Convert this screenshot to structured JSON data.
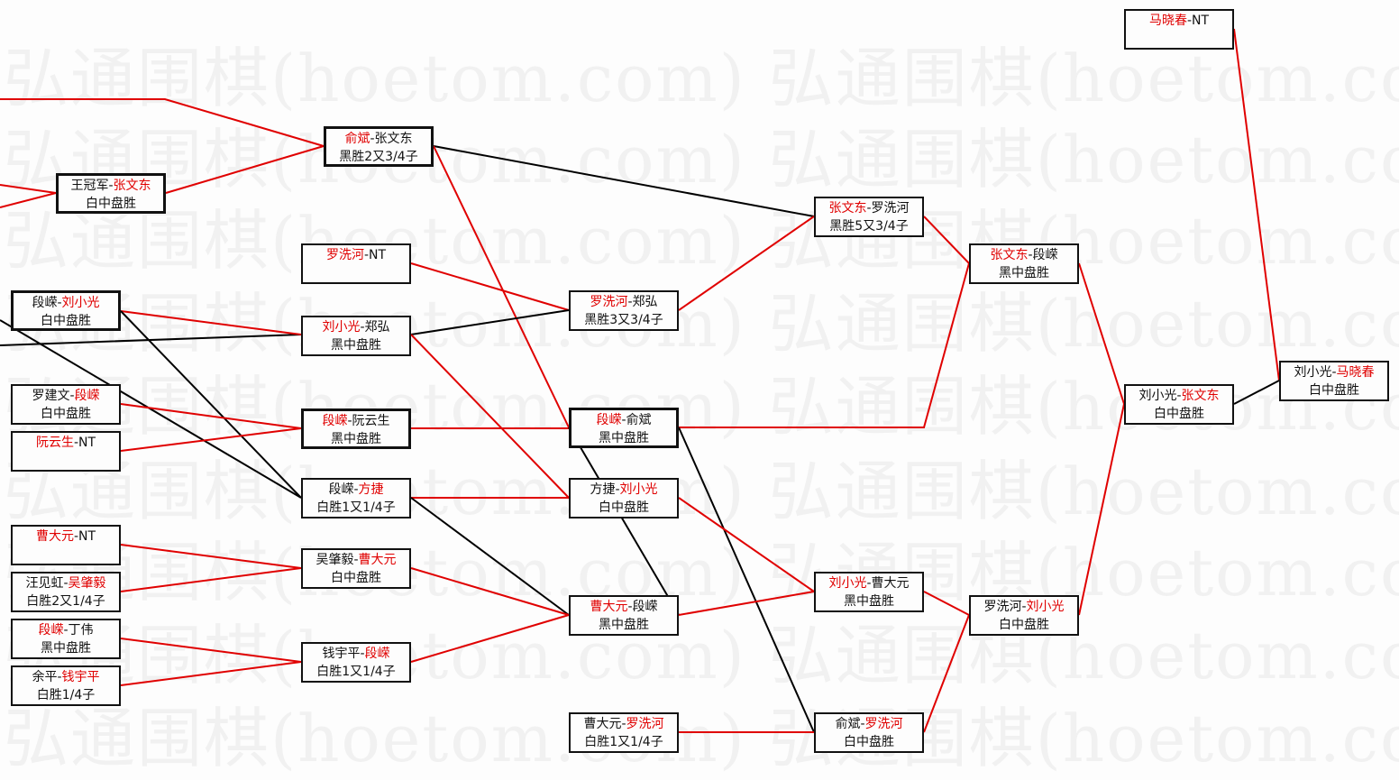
{
  "watermark": "弘通围棋(hoetom.com) 弘通围棋(hoetom.com) 弘通围棋",
  "colors": {
    "winner": "#e00000",
    "text": "#111111",
    "loser_line": "#000000",
    "winner_line": "#e00000"
  },
  "separator": "-",
  "matches": [
    {
      "p1": "王冠军",
      "p2": "张文东",
      "winner": 2,
      "result": "白中盘胜"
    },
    {
      "p1": "俞斌",
      "p2": "张文东",
      "winner": 1,
      "result": "黑胜2又3/4子"
    },
    {
      "p1": "罗洗河",
      "p2": "NT",
      "winner": 1,
      "result": ""
    },
    {
      "p1": "段嵘",
      "p2": "刘小光",
      "winner": 2,
      "result": "白中盘胜"
    },
    {
      "p1": "刘小光",
      "p2": "郑弘",
      "winner": 1,
      "result": "黑中盘胜"
    },
    {
      "p1": "罗建文",
      "p2": "段嵘",
      "winner": 2,
      "result": "白中盘胜"
    },
    {
      "p1": "阮云生",
      "p2": "NT",
      "winner": 1,
      "result": ""
    },
    {
      "p1": "段嵘",
      "p2": "阮云生",
      "winner": 1,
      "result": "黑中盘胜"
    },
    {
      "p1": "段嵘",
      "p2": "方捷",
      "winner": 2,
      "result": "白胜1又1/4子"
    },
    {
      "p1": "曹大元",
      "p2": "NT",
      "winner": 1,
      "result": ""
    },
    {
      "p1": "汪见虹",
      "p2": "吴肇毅",
      "winner": 2,
      "result": "白胜2又1/4子"
    },
    {
      "p1": "段嵘",
      "p2": "丁伟",
      "winner": 1,
      "result": "黑中盘胜"
    },
    {
      "p1": "余平",
      "p2": "钱宇平",
      "winner": 2,
      "result": "白胜1/4子"
    },
    {
      "p1": "吴肇毅",
      "p2": "曹大元",
      "winner": 2,
      "result": "白中盘胜"
    },
    {
      "p1": "钱宇平",
      "p2": "段嵘",
      "winner": 2,
      "result": "白胜1又1/4子"
    },
    {
      "p1": "罗洗河",
      "p2": "郑弘",
      "winner": 1,
      "result": "黑胜3又3/4子"
    },
    {
      "p1": "段嵘",
      "p2": "俞斌",
      "winner": 1,
      "result": "黑中盘胜"
    },
    {
      "p1": "方捷",
      "p2": "刘小光",
      "winner": 2,
      "result": "白中盘胜"
    },
    {
      "p1": "曹大元",
      "p2": "段嵘",
      "winner": 1,
      "result": "黑中盘胜"
    },
    {
      "p1": "曹大元",
      "p2": "罗洗河",
      "winner": 2,
      "result": "白胜1又1/4子"
    },
    {
      "p1": "张文东",
      "p2": "罗洗河",
      "winner": 1,
      "result": "黑胜5又3/4子"
    },
    {
      "p1": "刘小光",
      "p2": "曹大元",
      "winner": 1,
      "result": "黑中盘胜"
    },
    {
      "p1": "俞斌",
      "p2": "罗洗河",
      "winner": 2,
      "result": "白中盘胜"
    },
    {
      "p1": "张文东",
      "p2": "段嵘",
      "winner": 1,
      "result": "黑中盘胜"
    },
    {
      "p1": "罗洗河",
      "p2": "刘小光",
      "winner": 2,
      "result": "白中盘胜"
    },
    {
      "p1": "刘小光",
      "p2": "张文东",
      "winner": 2,
      "result": "白中盘胜"
    },
    {
      "p1": "马晓春",
      "p2": "NT",
      "winner": 1,
      "result": ""
    },
    {
      "p1": "刘小光",
      "p2": "马晓春",
      "winner": 2,
      "result": "白中盘胜"
    }
  ]
}
